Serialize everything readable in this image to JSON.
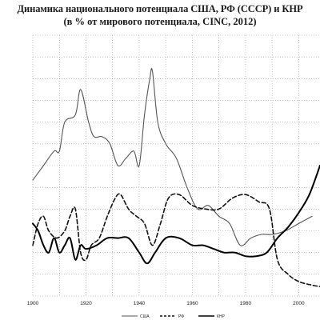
{
  "chart_data": {
    "type": "line",
    "title_line1": "Динамика национального потенциала США, РФ (СССР) и КНР",
    "title_line2": "(в % от мирового потенциала, CINC, 2012)",
    "xlabel": "",
    "ylabel": "",
    "xlim": [
      1900,
      2008
    ],
    "ylim": [
      0,
      36
    ],
    "x_ticks": [
      1900,
      1920,
      1940,
      1960,
      1980,
      2000
    ],
    "grid": true,
    "series": [
      {
        "name": "США",
        "style": "solid-thin",
        "color": "#555555",
        "points": [
          [
            1900,
            16
          ],
          [
            1904,
            18
          ],
          [
            1908,
            20
          ],
          [
            1910,
            20
          ],
          [
            1912,
            24
          ],
          [
            1916,
            25
          ],
          [
            1918,
            28.5
          ],
          [
            1921,
            24
          ],
          [
            1923,
            22
          ],
          [
            1926,
            22
          ],
          [
            1929,
            21
          ],
          [
            1932,
            18
          ],
          [
            1935,
            19
          ],
          [
            1938,
            20
          ],
          [
            1940,
            18
          ],
          [
            1942,
            25
          ],
          [
            1944,
            30
          ],
          [
            1945,
            31
          ],
          [
            1947,
            24
          ],
          [
            1950,
            21
          ],
          [
            1954,
            19
          ],
          [
            1958,
            15
          ],
          [
            1962,
            12
          ],
          [
            1966,
            12.5
          ],
          [
            1970,
            11
          ],
          [
            1974,
            10
          ],
          [
            1978,
            7
          ],
          [
            1982,
            8
          ],
          [
            1986,
            8.5
          ],
          [
            1990,
            8.5
          ],
          [
            1995,
            9
          ],
          [
            2000,
            10
          ],
          [
            2005,
            11
          ]
        ]
      },
      {
        "name": "РФ",
        "style": "dashed",
        "color": "#111111",
        "points": [
          [
            1900,
            7
          ],
          [
            1902,
            10
          ],
          [
            1904,
            11
          ],
          [
            1906,
            9
          ],
          [
            1909,
            8
          ],
          [
            1912,
            9
          ],
          [
            1914,
            11
          ],
          [
            1916,
            12
          ],
          [
            1918,
            6
          ],
          [
            1920,
            5
          ],
          [
            1922,
            7
          ],
          [
            1925,
            8
          ],
          [
            1928,
            11
          ],
          [
            1931,
            13.5
          ],
          [
            1933,
            14
          ],
          [
            1936,
            12
          ],
          [
            1939,
            11
          ],
          [
            1942,
            10
          ],
          [
            1945,
            7
          ],
          [
            1948,
            10
          ],
          [
            1951,
            13.5
          ],
          [
            1955,
            14
          ],
          [
            1960,
            12.5
          ],
          [
            1965,
            12
          ],
          [
            1970,
            12
          ],
          [
            1975,
            13.5
          ],
          [
            1980,
            14
          ],
          [
            1985,
            13
          ],
          [
            1989,
            12
          ],
          [
            1992,
            5
          ],
          [
            1996,
            3
          ],
          [
            2000,
            2
          ],
          [
            2005,
            1.5
          ],
          [
            2008,
            1.3
          ]
        ]
      },
      {
        "name": "КНР",
        "style": "solid-thick",
        "color": "#000000",
        "points": [
          [
            1900,
            10
          ],
          [
            1902,
            9
          ],
          [
            1904,
            7
          ],
          [
            1906,
            6
          ],
          [
            1908,
            8
          ],
          [
            1910,
            6
          ],
          [
            1912,
            7
          ],
          [
            1914,
            8
          ],
          [
            1916,
            5
          ],
          [
            1918,
            7
          ],
          [
            1920,
            6.5
          ],
          [
            1924,
            7
          ],
          [
            1928,
            8
          ],
          [
            1932,
            8
          ],
          [
            1936,
            8
          ],
          [
            1940,
            6
          ],
          [
            1943,
            4.5
          ],
          [
            1946,
            6
          ],
          [
            1950,
            8
          ],
          [
            1955,
            8
          ],
          [
            1960,
            7
          ],
          [
            1964,
            7
          ],
          [
            1968,
            6.5
          ],
          [
            1972,
            6
          ],
          [
            1976,
            6
          ],
          [
            1980,
            5.5
          ],
          [
            1984,
            5.5
          ],
          [
            1988,
            6
          ],
          [
            1992,
            8
          ],
          [
            1996,
            9.5
          ],
          [
            2000,
            11.5
          ],
          [
            2004,
            14
          ],
          [
            2008,
            18
          ]
        ]
      }
    ]
  }
}
